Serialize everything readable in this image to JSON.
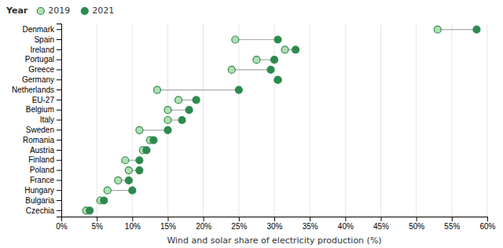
{
  "chart_data": {
    "type": "dumbbell",
    "categories": [
      "Denmark",
      "Spain",
      "Ireland",
      "Portugal",
      "Greece",
      "Germany",
      "Netherlands",
      "EU-27",
      "Belgium",
      "Italy",
      "Sweden",
      "Romania",
      "Austria",
      "Finland",
      "Poland",
      "France",
      "Hungary",
      "Bulgaria",
      "Czechia"
    ],
    "series": [
      {
        "name": "2019",
        "color": "#b2dfb2",
        "values": [
          53.0,
          24.5,
          31.5,
          27.5,
          24.0,
          30.5,
          13.5,
          16.5,
          15.0,
          15.0,
          11.0,
          12.5,
          11.5,
          9.0,
          9.5,
          8.0,
          6.5,
          5.5,
          3.5
        ]
      },
      {
        "name": "2021",
        "color": "#2d8a4e",
        "values": [
          58.5,
          30.5,
          33.0,
          30.0,
          29.5,
          30.5,
          25.0,
          19.0,
          18.0,
          17.0,
          15.0,
          13.0,
          12.0,
          11.0,
          11.0,
          9.5,
          10.0,
          6.0,
          4.0
        ]
      }
    ],
    "legend_title": "Year",
    "legend": "top-left",
    "xlabel": "Wind and solar share of electricity production (%)",
    "xlim": [
      0,
      60
    ],
    "xticks": [
      {
        "value": 0,
        "label": "0%"
      },
      {
        "value": 5,
        "label": "5%"
      },
      {
        "value": 10,
        "label": "10%"
      },
      {
        "value": 15,
        "label": "15%"
      },
      {
        "value": 20,
        "label": "20%"
      },
      {
        "value": 25,
        "label": "25%"
      },
      {
        "value": 30,
        "label": "30%"
      },
      {
        "value": 35,
        "label": "35%"
      },
      {
        "value": 40,
        "label": "40%"
      },
      {
        "value": 45,
        "label": "45%"
      },
      {
        "value": 50,
        "label": "50%"
      },
      {
        "value": 55,
        "label": "55%"
      },
      {
        "value": 60,
        "label": "60%"
      }
    ],
    "grid": true
  }
}
